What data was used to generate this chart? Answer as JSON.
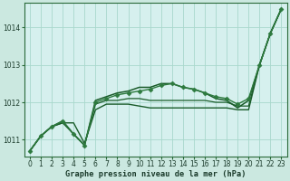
{
  "background_color": "#cbe8e0",
  "plot_bg_color": "#d6f0ee",
  "grid_color": "#a8d8cc",
  "line_color_dark": "#1a5c2a",
  "line_color_mid": "#2d7a3e",
  "title": "Graphe pression niveau de la mer (hPa)",
  "xlim": [
    -0.5,
    23.5
  ],
  "ylim": [
    1010.55,
    1014.65
  ],
  "yticks": [
    1011,
    1012,
    1013,
    1014
  ],
  "xticks": [
    0,
    1,
    2,
    3,
    4,
    5,
    6,
    7,
    8,
    9,
    10,
    11,
    12,
    13,
    14,
    15,
    16,
    17,
    18,
    19,
    20,
    21,
    22,
    23
  ],
  "series": [
    {
      "x": [
        0,
        1,
        2,
        3,
        4,
        5,
        6,
        7,
        8,
        9,
        10,
        11,
        12,
        13,
        14,
        15,
        16,
        17,
        18,
        19,
        20,
        21,
        22,
        23
      ],
      "y": [
        1010.7,
        1011.1,
        1011.35,
        1011.45,
        1011.45,
        1010.9,
        1011.8,
        1011.95,
        1011.95,
        1011.95,
        1011.9,
        1011.85,
        1011.85,
        1011.85,
        1011.85,
        1011.85,
        1011.85,
        1011.85,
        1011.85,
        1011.8,
        1011.8,
        1013.0,
        1013.85,
        1014.5
      ],
      "color": "#1a5c2a",
      "lw": 1.0,
      "marker": null,
      "zorder": 2
    },
    {
      "x": [
        0,
        1,
        2,
        3,
        4,
        5,
        6,
        7,
        8,
        9,
        10,
        11,
        12,
        13,
        14,
        15,
        16,
        17,
        18,
        19,
        20,
        21,
        22,
        23
      ],
      "y": [
        1010.7,
        1011.1,
        1011.35,
        1011.45,
        1011.15,
        1010.85,
        1011.95,
        1012.05,
        1012.05,
        1012.1,
        1012.1,
        1012.05,
        1012.05,
        1012.05,
        1012.05,
        1012.05,
        1012.05,
        1012.0,
        1012.0,
        1011.9,
        1011.9,
        1013.0,
        1013.85,
        1014.5
      ],
      "color": "#1a5c2a",
      "lw": 0.9,
      "marker": null,
      "zorder": 2
    },
    {
      "x": [
        0,
        1,
        2,
        3,
        4,
        5,
        6,
        7,
        8,
        9,
        10,
        11,
        12,
        13,
        14,
        15,
        16,
        17,
        18,
        19,
        20,
        21,
        22,
        23
      ],
      "y": [
        1010.7,
        1011.1,
        1011.35,
        1011.5,
        1011.15,
        1010.85,
        1012.0,
        1012.1,
        1012.2,
        1012.25,
        1012.3,
        1012.35,
        1012.45,
        1012.5,
        1012.4,
        1012.35,
        1012.25,
        1012.15,
        1012.1,
        1011.95,
        1012.1,
        1013.0,
        1013.85,
        1014.5
      ],
      "color": "#2d7a3e",
      "lw": 1.0,
      "marker": "D",
      "markersize": 2.5,
      "zorder": 3
    },
    {
      "x": [
        0,
        1,
        2,
        3,
        4,
        5,
        6,
        7,
        8,
        9,
        10,
        11,
        12,
        13,
        14,
        15,
        16,
        17,
        18,
        19,
        20,
        21,
        22,
        23
      ],
      "y": [
        1010.7,
        1011.1,
        1011.35,
        1011.5,
        1011.15,
        1010.85,
        1012.05,
        1012.15,
        1012.25,
        1012.3,
        1012.4,
        1012.4,
        1012.5,
        1012.5,
        1012.4,
        1012.35,
        1012.25,
        1012.1,
        1012.05,
        1011.85,
        1012.05,
        1013.0,
        1013.85,
        1014.5
      ],
      "color": "#1a5c2a",
      "lw": 1.1,
      "marker": null,
      "zorder": 2
    }
  ],
  "tick_fontsize": 5.5,
  "label_fontsize": 6.0,
  "title_fontsize": 6.2
}
